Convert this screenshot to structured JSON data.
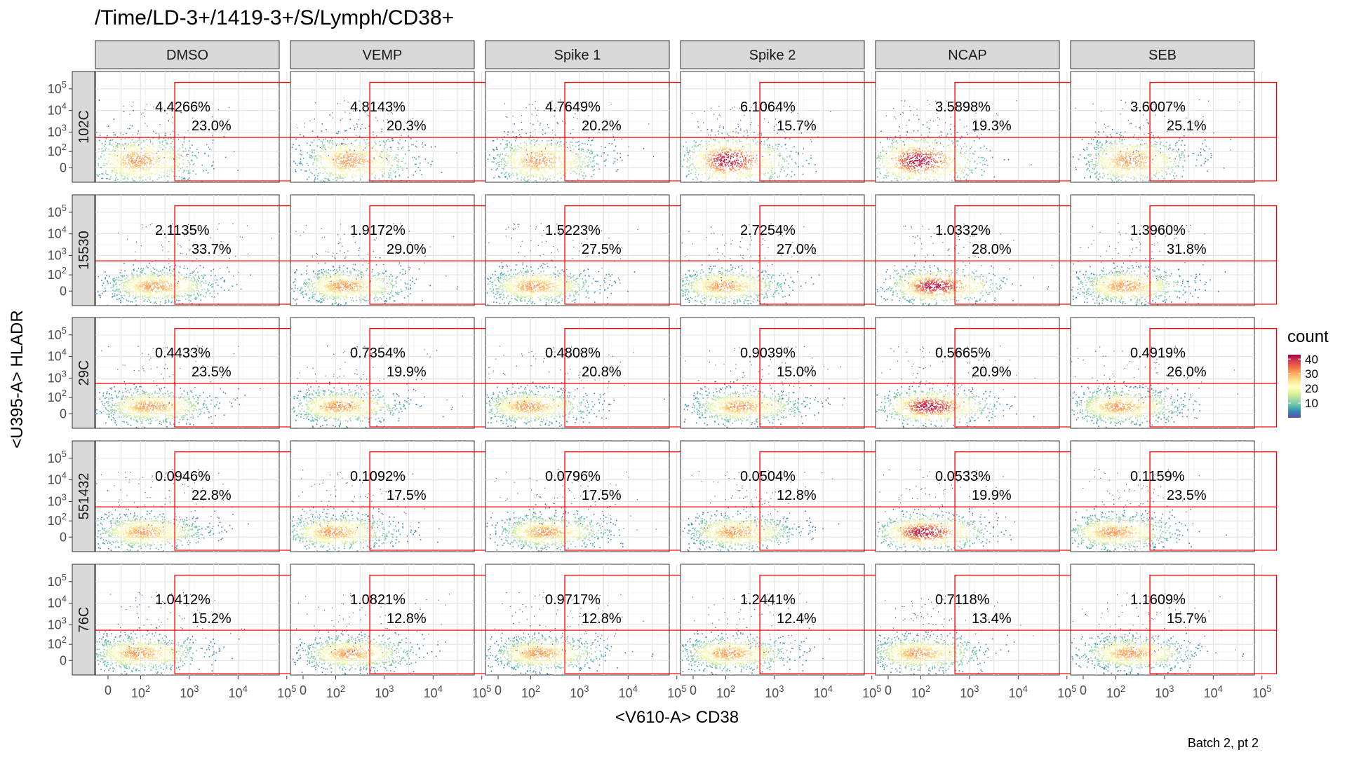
{
  "chart_data": {
    "type": "scatter",
    "title": "/Time/LD-3+/1419-3+/S/Lymph/CD38+",
    "xlabel": "<V610-A> CD38",
    "ylabel": "<U395-A> HLADR",
    "caption": "Batch 2, pt 2",
    "x_scale": "biexponential",
    "y_scale": "biexponential",
    "x_ticks": [
      "0",
      "10^2",
      "10^3",
      "10^4",
      "10^5"
    ],
    "y_ticks": [
      "10^5",
      "10^4",
      "10^3",
      "10^2",
      "0"
    ],
    "columns": [
      "DMSO",
      "VEMP",
      "Spike 1",
      "Spike 2",
      "NCAP",
      "SEB"
    ],
    "rows": [
      "102C",
      "15530",
      "29C",
      "551432",
      "76C"
    ],
    "gates": {
      "hladr_pos_cd38_pos": {
        "x_range": [
          "10^2.7",
          "10^5.3"
        ],
        "y_range": [
          "10^2.7",
          "10^5.3"
        ]
      },
      "cd38_pos": {
        "x_range": [
          "10^2.7",
          "10^5.3"
        ],
        "y_range": [
          "min",
          "10^5.3"
        ]
      }
    },
    "panels": [
      [
        "4.4266%",
        "23.0%",
        "4.8143%",
        "20.3%",
        "4.7649%",
        "20.2%",
        "6.1064%",
        "15.7%",
        "3.5898%",
        "19.3%",
        "3.6007%",
        "25.1%"
      ],
      [
        "2.1135%",
        "33.7%",
        "1.9172%",
        "29.0%",
        "1.5223%",
        "27.5%",
        "2.7254%",
        "27.0%",
        "1.0332%",
        "28.0%",
        "1.3960%",
        "31.8%"
      ],
      [
        "0.4433%",
        "23.5%",
        "0.7354%",
        "19.9%",
        "0.4808%",
        "20.8%",
        "0.9039%",
        "15.0%",
        "0.5665%",
        "20.9%",
        "0.4919%",
        "26.0%"
      ],
      [
        "0.0946%",
        "22.8%",
        "0.1092%",
        "17.5%",
        "0.0796%",
        "17.5%",
        "0.0504%",
        "12.8%",
        "0.0533%",
        "19.9%",
        "0.1159%",
        "23.5%"
      ],
      [
        "1.0412%",
        "15.2%",
        "1.0821%",
        "12.8%",
        "0.9717%",
        "12.8%",
        "1.2441%",
        "12.4%",
        "0.7118%",
        "13.4%",
        "1.1609%",
        "15.7%"
      ]
    ],
    "legend": {
      "title": "count",
      "ticks": [
        "40",
        "30",
        "20",
        "10"
      ],
      "range": [
        0,
        43
      ],
      "colors": [
        "#5e4fa2",
        "#3288bd",
        "#66c2a5",
        "#abdda4",
        "#e6f598",
        "#ffffbf",
        "#fee08b",
        "#fdae61",
        "#f46d43",
        "#d53e4f",
        "#9e0142"
      ]
    }
  }
}
